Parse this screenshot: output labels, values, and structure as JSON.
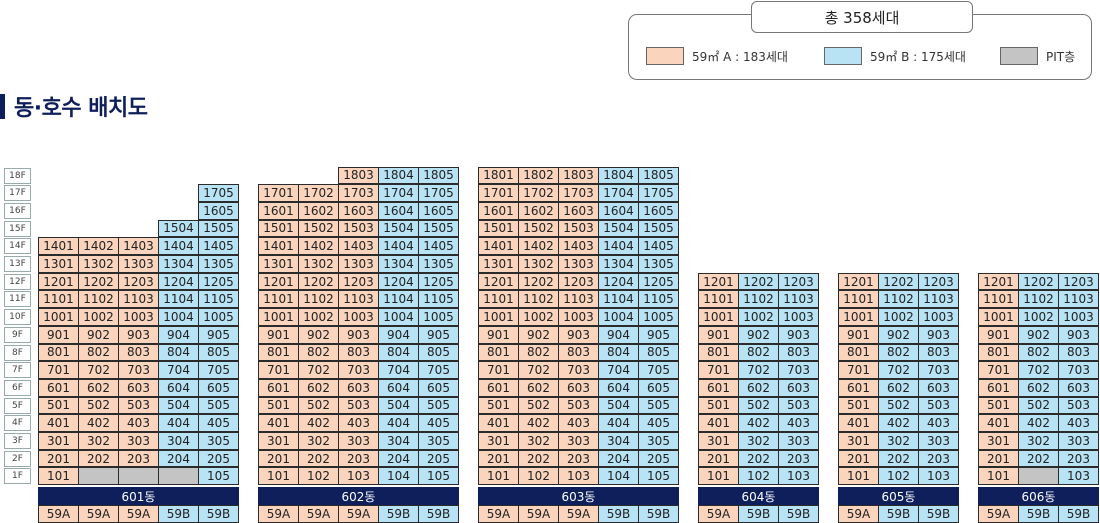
{
  "legend": {
    "total": "총 358세대",
    "items": [
      {
        "label": "59㎡ A : 183세대",
        "color": "#fad4bd"
      },
      {
        "label": "59㎡ B : 175세대",
        "color": "#b7e3f5"
      },
      {
        "label": "PIT층",
        "color": "#c4c4c4"
      }
    ]
  },
  "title": "동·호수 배치도",
  "floors": [
    "18F",
    "17F",
    "16F",
    "15F",
    "14F",
    "13F",
    "12F",
    "11F",
    "10F",
    "9F",
    "8F",
    "7F",
    "6F",
    "5F",
    "4F",
    "3F",
    "2F",
    "1F"
  ],
  "buildings": [
    {
      "name": "601동",
      "types": [
        "A",
        "A",
        "A",
        "B",
        "B"
      ],
      "type_labels": [
        "59A",
        "59A",
        "59A",
        "59B",
        "59B"
      ],
      "col_top": [
        14,
        14,
        14,
        15,
        17
      ],
      "pit_cols_floor1": [
        1,
        2,
        3
      ]
    },
    {
      "name": "602동",
      "types": [
        "A",
        "A",
        "A",
        "B",
        "B"
      ],
      "type_labels": [
        "59A",
        "59A",
        "59A",
        "59B",
        "59B"
      ],
      "col_top": [
        17,
        17,
        18,
        18,
        18
      ],
      "pit_cols_floor1": []
    },
    {
      "name": "603동",
      "types": [
        "A",
        "A",
        "A",
        "B",
        "B"
      ],
      "type_labels": [
        "59A",
        "59A",
        "59A",
        "59B",
        "59B"
      ],
      "col_top": [
        18,
        18,
        18,
        18,
        18
      ],
      "pit_cols_floor1": []
    },
    {
      "name": "604동",
      "types": [
        "A",
        "B",
        "B"
      ],
      "type_labels": [
        "59A",
        "59B",
        "59B"
      ],
      "col_top": [
        12,
        12,
        12
      ],
      "pit_cols_floor1": []
    },
    {
      "name": "605동",
      "types": [
        "A",
        "B",
        "B"
      ],
      "type_labels": [
        "59A",
        "59B",
        "59B"
      ],
      "col_top": [
        12,
        12,
        12
      ],
      "pit_cols_floor1": []
    },
    {
      "name": "606동",
      "types": [
        "A",
        "B",
        "B"
      ],
      "type_labels": [
        "59A",
        "59B",
        "59B"
      ],
      "col_top": [
        12,
        12,
        12
      ],
      "pit_cols_floor1": [
        1
      ]
    }
  ]
}
